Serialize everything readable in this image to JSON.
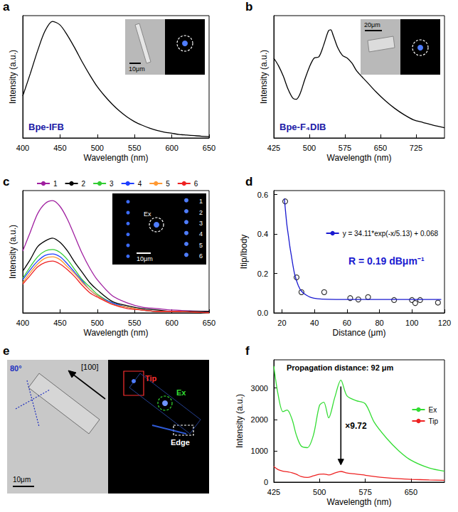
{
  "chart_data": [
    {
      "panel": "a",
      "type": "line",
      "x_label": "Wavelength (nm)",
      "y_label": "Intensity (a.u.)",
      "annotation": "Bpe-IFB",
      "inset": {
        "scale_bar": "10μm"
      },
      "x": [
        400,
        410,
        420,
        430,
        440,
        450,
        460,
        470,
        480,
        490,
        500,
        510,
        520,
        530,
        540,
        550,
        560,
        570,
        580,
        590,
        600,
        610,
        620,
        630,
        640,
        650
      ],
      "values": [
        0.36,
        0.55,
        0.75,
        0.92,
        1.0,
        0.97,
        0.88,
        0.77,
        0.65,
        0.54,
        0.44,
        0.36,
        0.29,
        0.23,
        0.18,
        0.14,
        0.11,
        0.085,
        0.065,
        0.05,
        0.04,
        0.03,
        0.025,
        0.02,
        0.015,
        0.012
      ],
      "color": "#000000",
      "xlim": [
        400,
        650
      ],
      "xticks": [
        400,
        450,
        500,
        550,
        600,
        650
      ],
      "ylim": [
        0,
        1.05
      ],
      "tick_labels": "x",
      "grid": false
    },
    {
      "panel": "b",
      "type": "line",
      "x_label": "Wavelength (nm)",
      "y_label": "Intensity (a.u.)",
      "annotation": "Bpe-F₄DIB",
      "inset": {
        "scale_bar": "20μm"
      },
      "x": [
        425,
        435,
        445,
        455,
        465,
        472,
        480,
        490,
        500,
        510,
        520,
        530,
        540,
        545,
        550,
        560,
        570,
        580,
        590,
        600,
        620,
        640,
        660,
        680,
        700,
        720,
        740,
        760,
        785
      ],
      "values": [
        0.62,
        0.56,
        0.48,
        0.38,
        0.31,
        0.3,
        0.34,
        0.45,
        0.55,
        0.62,
        0.63,
        0.72,
        0.83,
        0.84,
        0.8,
        0.7,
        0.64,
        0.62,
        0.58,
        0.52,
        0.44,
        0.36,
        0.29,
        0.23,
        0.18,
        0.14,
        0.12,
        0.1,
        0.08
      ],
      "color": "#000000",
      "xlim": [
        425,
        785
      ],
      "xticks": [
        425,
        500,
        575,
        650,
        725
      ],
      "ylim": [
        0,
        0.95
      ],
      "tick_labels": "x",
      "grid": false
    },
    {
      "panel": "c",
      "type": "line",
      "x_label": "Wavelength (nm)",
      "y_label": "Intensity (a.u.)",
      "inset": {
        "excitation": "Ex",
        "scale_bar": "10μm",
        "rows": [
          "1",
          "2",
          "3",
          "4",
          "5",
          "6"
        ]
      },
      "x": [
        400,
        410,
        420,
        430,
        440,
        450,
        460,
        470,
        480,
        490,
        500,
        520,
        540,
        560,
        580,
        600,
        650
      ],
      "series": [
        {
          "name": "1",
          "color": "#a020a0",
          "values": [
            0.43,
            0.56,
            0.69,
            0.76,
            0.78,
            0.74,
            0.65,
            0.53,
            0.41,
            0.31,
            0.23,
            0.12,
            0.07,
            0.04,
            0.03,
            0.02,
            0.01
          ]
        },
        {
          "name": "2",
          "color": "#000000",
          "values": [
            0.29,
            0.37,
            0.46,
            0.5,
            0.52,
            0.49,
            0.43,
            0.35,
            0.28,
            0.21,
            0.16,
            0.08,
            0.05,
            0.03,
            0.02,
            0.01,
            0.01
          ]
        },
        {
          "name": "3",
          "color": "#33cc33",
          "values": [
            0.24,
            0.32,
            0.39,
            0.43,
            0.44,
            0.42,
            0.37,
            0.3,
            0.23,
            0.18,
            0.13,
            0.07,
            0.04,
            0.02,
            0.01,
            0.01,
            0.0
          ]
        },
        {
          "name": "4",
          "color": "#1f3fff",
          "values": [
            0.23,
            0.3,
            0.36,
            0.4,
            0.41,
            0.39,
            0.34,
            0.28,
            0.22,
            0.16,
            0.12,
            0.07,
            0.04,
            0.02,
            0.01,
            0.01,
            0.0
          ]
        },
        {
          "name": "5",
          "color": "#ff9933",
          "values": [
            0.21,
            0.28,
            0.34,
            0.38,
            0.39,
            0.37,
            0.32,
            0.27,
            0.21,
            0.16,
            0.12,
            0.06,
            0.04,
            0.02,
            0.01,
            0.01,
            0.0
          ]
        },
        {
          "name": "6",
          "color": "#ee2222",
          "values": [
            0.2,
            0.26,
            0.32,
            0.35,
            0.36,
            0.34,
            0.3,
            0.25,
            0.19,
            0.14,
            0.11,
            0.06,
            0.03,
            0.02,
            0.01,
            0.01,
            0.0
          ]
        }
      ],
      "xlim": [
        400,
        650
      ],
      "xticks": [
        400,
        450,
        500,
        550,
        600,
        650
      ],
      "ylim": [
        0,
        0.85
      ],
      "tick_labels": "x",
      "legend": "top",
      "grid": false
    },
    {
      "panel": "d",
      "type": "scatter",
      "x_label": "Distance (μm)",
      "y_label": "Itip/Ibody",
      "annotation": "R = 0.19 dBμm⁻¹",
      "series": [
        {
          "type": "scatter",
          "marker": "open_circle",
          "color": "#000000",
          "x": [
            22,
            29,
            32,
            46,
            62,
            67,
            73,
            89,
            100,
            102,
            105,
            116
          ],
          "values": [
            0.565,
            0.18,
            0.105,
            0.105,
            0.075,
            0.068,
            0.08,
            0.065,
            0.065,
            0.05,
            0.065,
            0.052
          ]
        },
        {
          "type": "line",
          "name": "y = 34.11*exp(-x/5.13) + 0.068",
          "color": "#1a1ad0",
          "x": [
            21.5,
            23,
            24,
            25,
            26,
            27,
            28,
            30,
            32,
            35,
            38,
            42,
            48,
            60,
            80,
            100,
            118
          ],
          "values": [
            0.58,
            0.45,
            0.39,
            0.33,
            0.28,
            0.23,
            0.19,
            0.14,
            0.11,
            0.09,
            0.078,
            0.072,
            0.069,
            0.068,
            0.068,
            0.068,
            0.068
          ]
        }
      ],
      "xlim": [
        15,
        120
      ],
      "xticks": [
        20,
        40,
        60,
        80,
        100,
        120
      ],
      "ylim": [
        0,
        0.62
      ],
      "yticks": [
        {
          "value": 0,
          "label": "0.0"
        },
        0.2,
        0.4,
        0.6
      ],
      "legend": "right",
      "grid": false
    },
    {
      "panel": "f",
      "type": "line",
      "x_label": "Wavelength (nm)",
      "y_label": "Intensity (a.u.)",
      "annotation": "Propagation distance: 92 μm",
      "ratio_label": "×9.72",
      "arrow": {
        "x": 535,
        "from": 3050,
        "to": 550
      },
      "x": [
        425,
        432,
        440,
        447,
        455,
        462,
        470,
        480,
        490,
        500,
        507,
        515,
        525,
        535,
        545,
        560,
        575,
        590,
        610,
        630,
        650,
        680,
        705
      ],
      "series": [
        {
          "name": "Ex",
          "color": "#33dd33",
          "values": [
            3700,
            2800,
            2250,
            2300,
            2000,
            1500,
            1150,
            1100,
            1500,
            2450,
            2550,
            2050,
            2700,
            3250,
            2750,
            2600,
            2500,
            1900,
            1400,
            1000,
            700,
            450,
            350
          ]
        },
        {
          "name": "Tip",
          "color": "#ee2222",
          "values": [
            500,
            400,
            350,
            330,
            300,
            250,
            180,
            150,
            200,
            250,
            260,
            230,
            290,
            340,
            290,
            260,
            220,
            180,
            140,
            110,
            90,
            70,
            60
          ]
        }
      ],
      "xlim": [
        425,
        705
      ],
      "xticks": [
        425,
        500,
        575,
        650
      ],
      "ylim": [
        0,
        3900
      ],
      "yticks": [
        0,
        1000,
        2000,
        3000
      ],
      "legend": "right",
      "grid": false
    }
  ],
  "image_panel": {
    "panel": "e",
    "type": "image",
    "labels": {
      "angle": "80°",
      "direction": "[100]",
      "tip": "Tip",
      "excitation": "Ex",
      "edge": "Edge",
      "scale_bar": "10μm"
    }
  }
}
